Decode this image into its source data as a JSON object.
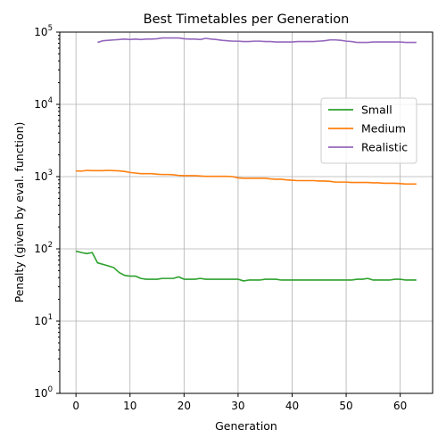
{
  "chart_data": {
    "type": "line",
    "title": "Best Timetables per Generation",
    "xlabel": "Generation",
    "ylabel": "Penalty (given by eval. function)",
    "yscale": "log",
    "xlim": [
      -3,
      66
    ],
    "ylim": [
      1,
      100000
    ],
    "xticks": [
      0,
      10,
      20,
      30,
      40,
      50,
      60
    ],
    "yticks": [
      {
        "value": 1,
        "base": "10",
        "exp": "0"
      },
      {
        "value": 10,
        "base": "10",
        "exp": "1"
      },
      {
        "value": 100,
        "base": "10",
        "exp": "2"
      },
      {
        "value": 1000,
        "base": "10",
        "exp": "3"
      },
      {
        "value": 10000,
        "base": "10",
        "exp": "4"
      },
      {
        "value": 100000,
        "base": "10",
        "exp": "5"
      }
    ],
    "grid": true,
    "legend": "center-right",
    "series": [
      {
        "name": "Small",
        "color": "#2ca02c",
        "x": [
          0,
          1,
          2,
          3,
          4,
          5,
          6,
          7,
          8,
          9,
          10,
          11,
          12,
          13,
          14,
          15,
          16,
          17,
          18,
          19,
          20,
          21,
          22,
          23,
          24,
          25,
          26,
          27,
          28,
          29,
          30,
          31,
          32,
          33,
          34,
          35,
          36,
          37,
          38,
          39,
          40,
          41,
          42,
          43,
          44,
          45,
          46,
          47,
          48,
          49,
          50,
          51,
          52,
          53,
          54,
          55,
          56,
          57,
          58,
          59,
          60,
          61,
          62,
          63
        ],
        "values": [
          93,
          89,
          86,
          89,
          64,
          61,
          58,
          55,
          47,
          43,
          42,
          42,
          39,
          38,
          38,
          38,
          39,
          39,
          39,
          41,
          38,
          38,
          38,
          39,
          38,
          38,
          38,
          38,
          38,
          38,
          38,
          36,
          37,
          37,
          37,
          38,
          38,
          38,
          37,
          37,
          37,
          37,
          37,
          37,
          37,
          37,
          37,
          37,
          37,
          37,
          37,
          37,
          38,
          38,
          39,
          37,
          37,
          37,
          37,
          38,
          38,
          37,
          37,
          37
        ]
      },
      {
        "name": "Medium",
        "color": "#ff7f0e",
        "x": [
          0,
          1,
          2,
          3,
          4,
          5,
          6,
          7,
          8,
          9,
          10,
          11,
          12,
          13,
          14,
          15,
          16,
          17,
          18,
          19,
          20,
          21,
          22,
          23,
          24,
          25,
          26,
          27,
          28,
          29,
          30,
          31,
          32,
          33,
          34,
          35,
          36,
          37,
          38,
          39,
          40,
          41,
          42,
          43,
          44,
          45,
          46,
          47,
          48,
          49,
          50,
          51,
          52,
          53,
          54,
          55,
          56,
          57,
          58,
          59,
          60,
          61,
          62,
          63
        ],
        "values": [
          1200,
          1190,
          1220,
          1210,
          1210,
          1210,
          1220,
          1210,
          1200,
          1180,
          1140,
          1120,
          1100,
          1100,
          1100,
          1080,
          1070,
          1070,
          1060,
          1040,
          1030,
          1030,
          1030,
          1020,
          1010,
          1010,
          1010,
          1010,
          1010,
          1000,
          960,
          950,
          950,
          950,
          950,
          950,
          930,
          920,
          920,
          900,
          890,
          880,
          880,
          880,
          880,
          870,
          870,
          860,
          840,
          840,
          840,
          830,
          830,
          830,
          830,
          820,
          820,
          810,
          810,
          810,
          800,
          790,
          790,
          790
        ]
      },
      {
        "name": "Realistic",
        "color": "#9467bd",
        "x": [
          4,
          5,
          6,
          7,
          8,
          9,
          10,
          11,
          12,
          13,
          14,
          15,
          16,
          17,
          18,
          19,
          20,
          21,
          22,
          23,
          24,
          25,
          26,
          27,
          28,
          29,
          30,
          31,
          32,
          33,
          34,
          35,
          36,
          37,
          38,
          39,
          40,
          41,
          42,
          43,
          44,
          45,
          46,
          47,
          48,
          49,
          50,
          51,
          52,
          53,
          54,
          55,
          56,
          57,
          58,
          59,
          60,
          61,
          62,
          63
        ],
        "values": [
          72000,
          76000,
          77000,
          78000,
          79000,
          80000,
          79000,
          80000,
          79000,
          80000,
          80000,
          81000,
          83000,
          83000,
          83000,
          83000,
          81000,
          80000,
          80000,
          79000,
          82000,
          80000,
          79000,
          77000,
          76000,
          75000,
          75000,
          74000,
          74000,
          75000,
          75000,
          74000,
          74000,
          73000,
          73000,
          73000,
          73000,
          74000,
          74000,
          74000,
          74000,
          75000,
          76000,
          78000,
          78000,
          77000,
          75000,
          74000,
          72000,
          72000,
          72000,
          73000,
          73000,
          73000,
          73000,
          73000,
          73000,
          72000,
          72000,
          72000
        ]
      }
    ]
  }
}
